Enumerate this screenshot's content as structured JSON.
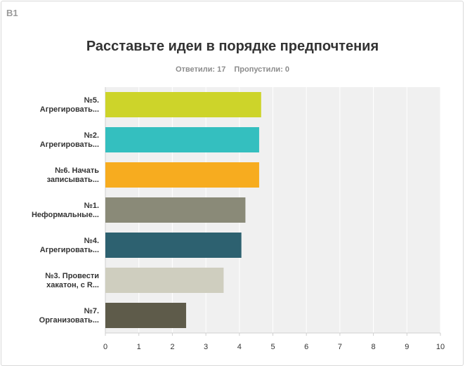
{
  "question_id": "В1",
  "title": "Расставьте идеи в порядке предпочтения",
  "stats": {
    "answered": "Ответили: 17",
    "skipped": "Пропустили: 0"
  },
  "chart_data": {
    "type": "bar",
    "orientation": "horizontal",
    "categories": [
      [
        "№5.",
        "Агрегировать..."
      ],
      [
        "№2.",
        "Агрегировать..."
      ],
      [
        "№6. Начать",
        "записывать..."
      ],
      [
        "№1.",
        "Неформальные..."
      ],
      [
        "№4.",
        "Агрегировать..."
      ],
      [
        "№3. Провести",
        "хакатон, с R..."
      ],
      [
        "№7.",
        "Организовать..."
      ]
    ],
    "values": [
      4.65,
      4.59,
      4.59,
      4.18,
      4.06,
      3.53,
      2.41
    ],
    "colors": [
      "#cdd42a",
      "#34bfbf",
      "#f7ac1f",
      "#8a8a78",
      "#2d6170",
      "#cfcebf",
      "#5e5b4a"
    ],
    "xlim": [
      0,
      10
    ],
    "xticks": [
      "0",
      "1",
      "2",
      "3",
      "4",
      "5",
      "6",
      "7",
      "8",
      "9",
      "10"
    ],
    "grid": true
  }
}
